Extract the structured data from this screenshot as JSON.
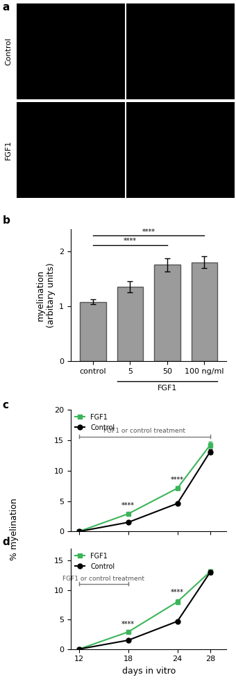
{
  "panel_a": {
    "label": "a",
    "rows": [
      "Control",
      "FGF1"
    ]
  },
  "shared_ylabel": "% myelination",
  "chart_data": [
    {
      "type": "bar",
      "panel": "b",
      "categories": [
        "control",
        "5",
        "50",
        "100 ng/ml"
      ],
      "values": [
        1.08,
        1.35,
        1.75,
        1.8
      ],
      "errors": [
        0.05,
        0.1,
        0.12,
        0.11
      ],
      "color": "#9b9b9b",
      "ylabel": "myelination\n(arbitary units)",
      "ylim": [
        0,
        2.4
      ],
      "yticks": [
        0,
        1,
        2
      ],
      "group": {
        "label": "FGF1",
        "categories": [
          "5",
          "50",
          "100 ng/ml"
        ]
      },
      "significance": [
        {
          "from": "control",
          "to": "50",
          "label": "****"
        },
        {
          "from": "control",
          "to": "100 ng/ml",
          "label": "****"
        }
      ]
    },
    {
      "type": "line",
      "panel": "c",
      "x": [
        12,
        18,
        24,
        28
      ],
      "series": [
        {
          "name": "FGF1",
          "color": "#3cb55a",
          "marker": "square",
          "values": [
            0,
            2.9,
            7.1,
            14.2
          ],
          "errors": [
            0,
            0.15,
            0.25,
            0.5
          ]
        },
        {
          "name": "Control",
          "color": "#000000",
          "marker": "circle",
          "values": [
            0,
            1.5,
            4.6,
            13.1
          ],
          "errors": [
            0,
            0.1,
            0.15,
            0.4
          ]
        }
      ],
      "xlim": [
        11,
        30
      ],
      "xticks": [
        12,
        18,
        24,
        28
      ],
      "ylim": [
        0,
        20
      ],
      "yticks": [
        0,
        5,
        10,
        15,
        20
      ],
      "legend": "upper left",
      "tick_labels": "y",
      "treatment": {
        "label": "FGF1 or control treatment",
        "start": 12,
        "end": 28
      },
      "annotations": [
        {
          "x": 18,
          "text": "****"
        },
        {
          "x": 24,
          "text": "****"
        }
      ]
    },
    {
      "type": "line",
      "panel": "d",
      "x": [
        12,
        18,
        24,
        28
      ],
      "series": [
        {
          "name": "FGF1",
          "color": "#3cb55a",
          "marker": "square",
          "values": [
            0,
            2.9,
            8.0,
            13.1
          ],
          "errors": [
            0,
            0.15,
            0.45,
            0.4
          ]
        },
        {
          "name": "Control",
          "color": "#000000",
          "marker": "circle",
          "values": [
            0,
            1.5,
            4.7,
            13.0
          ],
          "errors": [
            0,
            0.1,
            0.15,
            0.3
          ]
        }
      ],
      "xlim": [
        11,
        30
      ],
      "xticks": [
        12,
        18,
        24,
        28
      ],
      "ylim": [
        0,
        17
      ],
      "yticks": [
        0,
        5,
        10,
        15
      ],
      "xlabel": "days in vitro",
      "legend": "upper left",
      "treatment": {
        "label": "FGF1 or control treatment",
        "start": 12,
        "end": 18
      },
      "annotations": [
        {
          "x": 18,
          "text": "****"
        },
        {
          "x": 24,
          "text": "****"
        }
      ]
    }
  ]
}
